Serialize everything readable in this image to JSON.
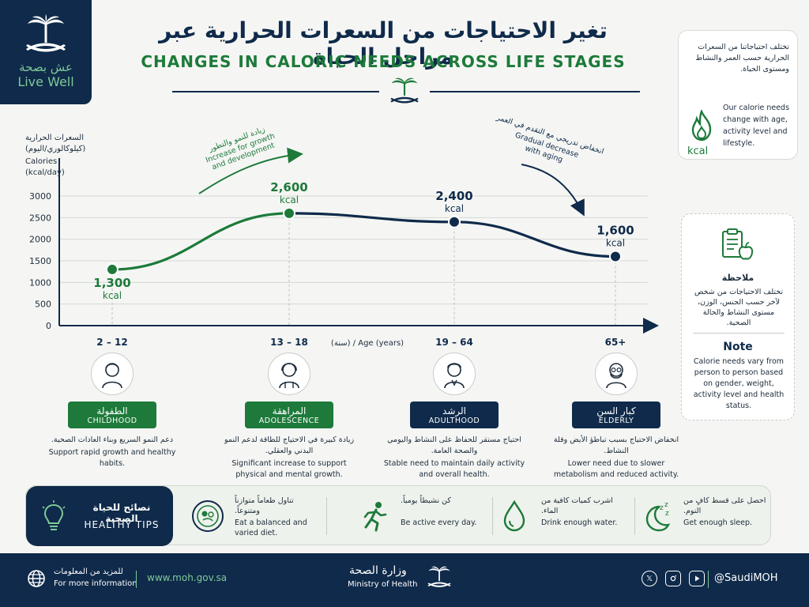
{
  "brand": {
    "ar": "عش بصحة",
    "en": "Live Well"
  },
  "title": {
    "ar": "تغير الاحتياجات من السعرات الحرارية عبر مراحل الحياة",
    "en": "CHANGES IN CALORIC NEEDS ACROSS LIFE STAGES"
  },
  "intro": {
    "ar": "تختلف احتياجاتنا من السعرات الحرارية حسب العمر والنشاط ومستوى الحياة.",
    "en": "Our calorie needs change with age, activity level and lifestyle.",
    "kcal": "kcal",
    "icon": "flame-icon"
  },
  "note": {
    "ar_title": "ملاحظة",
    "ar": "تختلف الاحتياجات من شخص لآخر حسب الجنس، الوزن، مستوى النشاط والحالة الصحية.",
    "en_title": "Note",
    "en": "Calorie needs vary from person to person based on gender, weight, activity level and health status."
  },
  "chart_data": {
    "type": "line",
    "ylabel_ar": "السعرات الحرارية (كيلوكالوري/اليوم)",
    "ylabel": "Calories (kcal/day)",
    "xlabel": "(سنة) / Age (years)",
    "yticks": [
      0,
      500,
      1000,
      1500,
      2000,
      2500,
      3000
    ],
    "ylim": [
      0,
      3000
    ],
    "categories": [
      "2 – 12",
      "13 – 18",
      "19 – 64",
      "65+"
    ],
    "values": [
      1300,
      2600,
      2400,
      1600
    ],
    "value_labels": [
      "1,300",
      "2,600",
      "2,400",
      "1,600"
    ],
    "unit": "kcal",
    "annotations": [
      {
        "ar": "زيادة للنمو والتطور",
        "en1": "Increase for growth",
        "en2": "and development"
      },
      {
        "ar": "انخفاض تدريجي مع التقدم في العمر",
        "en1": "Gradual decrease",
        "en2": "with aging"
      }
    ]
  },
  "stages": [
    {
      "ar": "الطفولة",
      "en": "CHILDHOOD",
      "d_ar": "دعم النمو السريع وبناء العادات الصحية.",
      "d_en": "Support rapid growth and healthy habits.",
      "color": "#1d7a3a"
    },
    {
      "ar": "المراهقة",
      "en": "ADOLESCENCE",
      "d_ar": "زيادة كبيرة في الاحتياج للطاقة لدعم النمو البدني والعقلي.",
      "d_en": "Significant increase to support physical and mental growth.",
      "color": "#1d7a3a"
    },
    {
      "ar": "الرشد",
      "en": "ADULTHOOD",
      "d_ar": "احتياج مستقر للحفاظ على النشاط واليومي والصحة العامة.",
      "d_en": "Stable need to maintain daily activity and overall health.",
      "color": "#0f2a4a"
    },
    {
      "ar": "كبار السن",
      "en": "ELDERLY",
      "d_ar": "انخفاض الاحتياج بسبب تباطؤ الأيض وقلة النشاط.",
      "d_en": "Lower need due to slower metabolism and reduced activity.",
      "color": "#0f2a4a"
    }
  ],
  "tips": {
    "ar_title": "نصائح للحياة الصحية",
    "en_title": "HEALTHY TIPS",
    "items": [
      {
        "ar": "تناول طعاماً متوازناً ومتنوعاً.",
        "en": "Eat a balanced and varied diet.",
        "icon": "plate-icon"
      },
      {
        "ar": "كن نشيطاً يومياً.",
        "en": "Be active every day.",
        "icon": "runner-icon"
      },
      {
        "ar": "اشرب كميات كافية من الماء.",
        "en": "Drink enough water.",
        "icon": "water-drop-icon"
      },
      {
        "ar": "احصل على قسط كافٍ من النوم.",
        "en": "Get enough sleep.",
        "icon": "moon-sleep-icon"
      }
    ]
  },
  "footer": {
    "info_ar": "للمزيد من المعلومات",
    "info_en": "For more information",
    "url": "www.moh.gov.sa",
    "ministry_ar": "وزارة الصحة",
    "ministry_en": "Ministry of Health",
    "social": [
      "X",
      "instagram",
      "youtube"
    ],
    "handle": "@SaudiMOH"
  }
}
